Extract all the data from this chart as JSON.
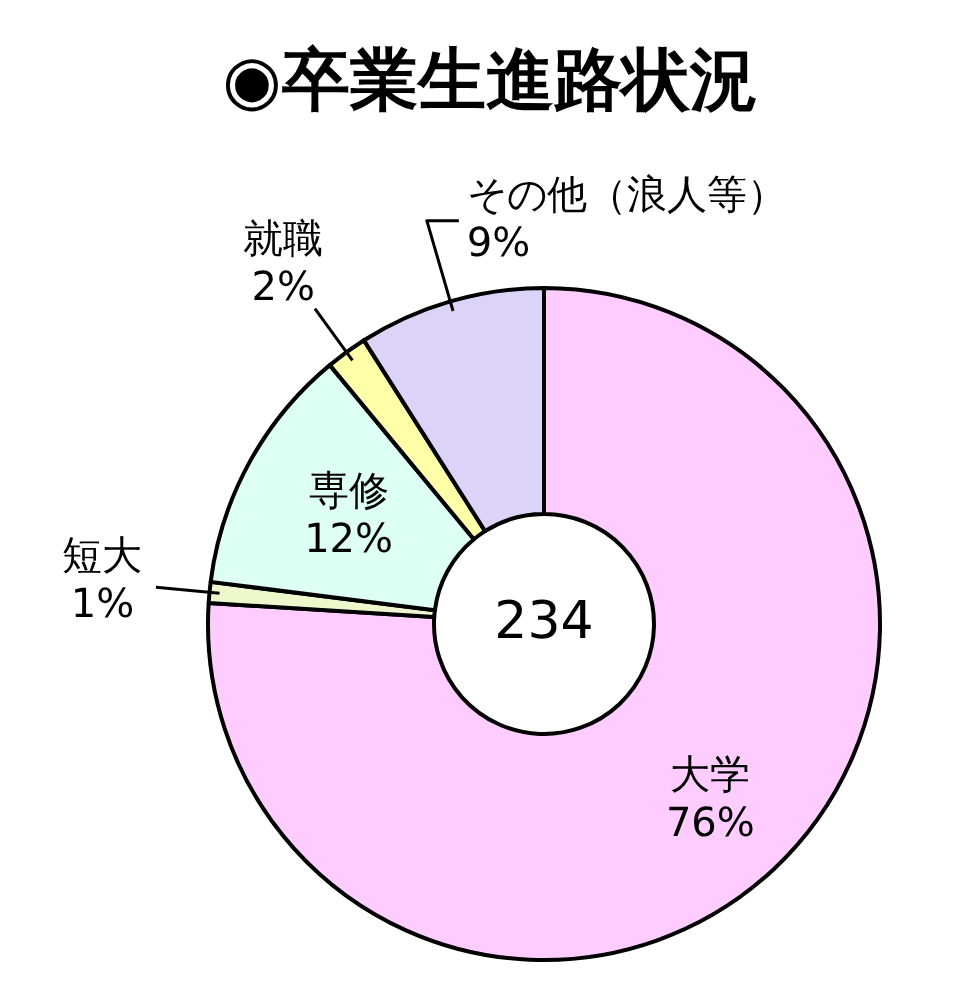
{
  "chart_data": {
    "type": "donut",
    "title": "◉卒業生進路状況",
    "categories": [
      "大学",
      "短大",
      "専修",
      "就職",
      "その他（浪人等）"
    ],
    "values": [
      76,
      1,
      12,
      2,
      9
    ],
    "colors": [
      "#ffccff",
      "#eef7cc",
      "#ddfff4",
      "#ffffaa",
      "#dcd4f8"
    ],
    "value_labels": [
      "76%",
      "1%",
      "12%",
      "2%",
      "9%"
    ],
    "annotations": [
      "234"
    ]
  }
}
